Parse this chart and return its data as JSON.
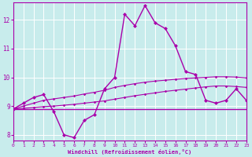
{
  "background_color": "#c8ecec",
  "grid_color": "#ffffff",
  "line_color": "#aa00aa",
  "xlabel": "Windchill (Refroidissement éolien,°C)",
  "xlim": [
    0,
    23
  ],
  "ylim": [
    7.8,
    12.6
  ],
  "xticks": [
    0,
    1,
    2,
    3,
    4,
    5,
    6,
    7,
    8,
    9,
    10,
    11,
    12,
    13,
    14,
    15,
    16,
    17,
    18,
    19,
    20,
    21,
    22,
    23
  ],
  "yticks": [
    8,
    9,
    10,
    11,
    12
  ],
  "hours": [
    0,
    1,
    2,
    3,
    4,
    5,
    6,
    7,
    8,
    9,
    10,
    11,
    12,
    13,
    14,
    15,
    16,
    17,
    18,
    19,
    20,
    21,
    22,
    23
  ],
  "spiky": [
    8.9,
    9.1,
    9.3,
    9.4,
    8.8,
    8.0,
    7.9,
    8.5,
    8.7,
    9.6,
    10.0,
    12.2,
    11.8,
    12.5,
    11.9,
    11.7,
    11.1,
    10.2,
    10.1,
    9.2,
    9.1,
    9.2,
    9.6,
    9.2
  ],
  "smooth_upper": [
    8.9,
    9.0,
    9.1,
    9.2,
    9.25,
    9.3,
    9.35,
    9.42,
    9.48,
    9.55,
    9.65,
    9.72,
    9.78,
    9.83,
    9.87,
    9.9,
    9.93,
    9.96,
    9.98,
    10.0,
    10.02,
    10.02,
    10.01,
    9.98
  ],
  "smooth_lower": [
    8.9,
    8.92,
    8.95,
    8.98,
    9.0,
    9.03,
    9.06,
    9.1,
    9.14,
    9.18,
    9.24,
    9.3,
    9.36,
    9.41,
    9.46,
    9.51,
    9.55,
    9.59,
    9.63,
    9.67,
    9.7,
    9.7,
    9.68,
    9.65
  ],
  "flat": [
    8.9,
    8.9,
    8.9,
    8.9,
    8.9,
    8.9,
    8.9,
    8.9,
    8.9,
    8.9,
    8.9,
    8.9,
    8.9,
    8.9,
    8.9,
    8.9,
    8.9,
    8.9,
    8.9,
    8.9,
    8.9,
    8.9,
    8.9,
    8.9
  ]
}
